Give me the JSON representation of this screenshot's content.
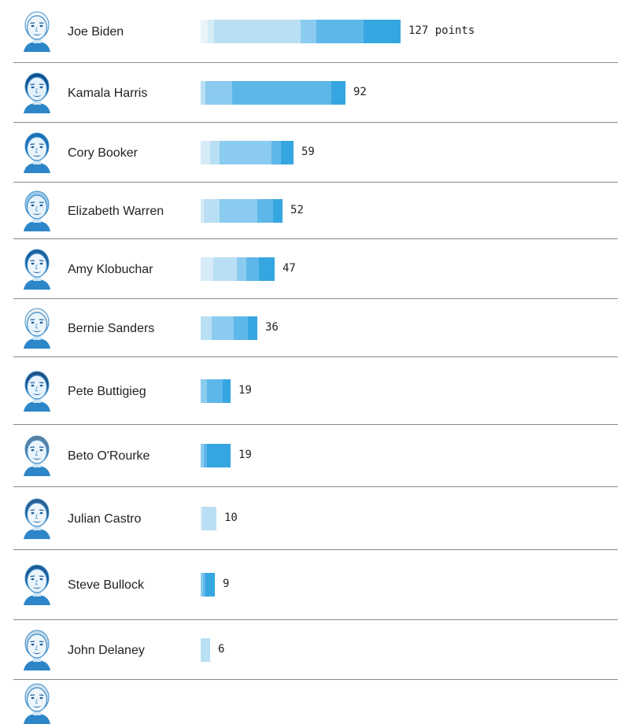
{
  "chart_data": {
    "type": "bar",
    "orientation": "horizontal",
    "stacked": true,
    "value_suffix": "points",
    "colors": [
      "#eaf4fb",
      "#d6ebf8",
      "#b9dff4",
      "#8acbef",
      "#5eb7e9",
      "#36a6e0",
      "#0f8fd6"
    ],
    "candidates": [
      {
        "name": "Joe Biden",
        "icon": "joe-biden-portrait",
        "total": 127,
        "segments": [
          4.5,
          4,
          55,
          10,
          30,
          23.5
        ]
      },
      {
        "name": "Kamala Harris",
        "icon": "kamala-harris-portrait",
        "total": 92,
        "segments": [
          3,
          17,
          63,
          9
        ]
      },
      {
        "name": "Cory Booker",
        "icon": "cory-booker-portrait",
        "total": 59,
        "segments": [
          6,
          6,
          33,
          6,
          8
        ]
      },
      {
        "name": "Elizabeth Warren",
        "icon": "elizabeth-warren-portrait",
        "total": 52,
        "segments": [
          2,
          10,
          24,
          10,
          6
        ]
      },
      {
        "name": "Amy Klobuchar",
        "icon": "amy-klobuchar-portrait",
        "total": 47,
        "segments": [
          8,
          15,
          6,
          8,
          10
        ]
      },
      {
        "name": "Bernie Sanders",
        "icon": "bernie-sanders-portrait",
        "total": 36,
        "segments": [
          7,
          14,
          9,
          6
        ]
      },
      {
        "name": "Pete Buttigieg",
        "icon": "pete-buttigieg-portrait",
        "total": 19,
        "segments": [
          4,
          10,
          5
        ]
      },
      {
        "name": "Beto O'Rourke",
        "icon": "beto-orourke-portrait",
        "total": 19,
        "segments": [
          2,
          2,
          15
        ]
      },
      {
        "name": "Julian Castro",
        "icon": "julian-castro-portrait",
        "total": 10,
        "segments": [
          1,
          9
        ]
      },
      {
        "name": "Steve Bullock",
        "icon": "steve-bullock-portrait",
        "total": 9,
        "segments": [
          1.5,
          1.5,
          6
        ]
      },
      {
        "name": "John Delaney",
        "icon": "john-delaney-portrait",
        "total": 6,
        "segments": [
          6
        ]
      },
      {
        "name": "",
        "icon": "candidate-portrait",
        "total": null,
        "segments": []
      }
    ]
  }
}
